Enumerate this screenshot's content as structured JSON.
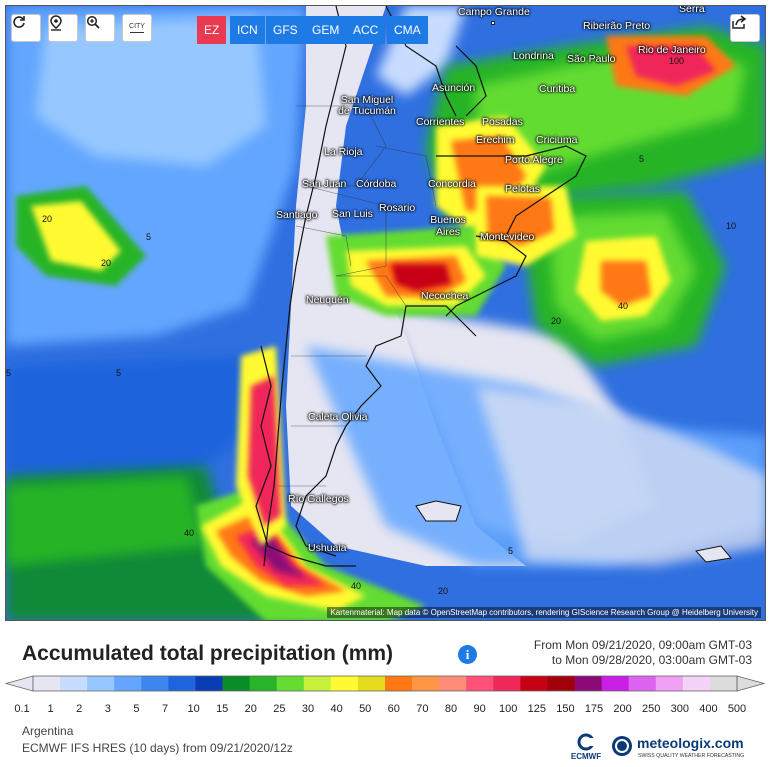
{
  "toolbar": {
    "reload_icon": "reload-icon",
    "location_icon": "location-pin-icon",
    "zoom_icon": "zoom-icon",
    "city_label": "CITY",
    "share_icon": "share-icon"
  },
  "models": [
    {
      "label": "EZ",
      "active": true
    },
    {
      "label": "ICN",
      "active": false
    },
    {
      "label": "GFS",
      "active": false
    },
    {
      "label": "GEM",
      "active": false
    },
    {
      "label": "ACC",
      "active": false
    },
    {
      "label": "CMA",
      "active": false
    }
  ],
  "cities": [
    "Campo Grande",
    "Ribeirão Preto",
    "Serra",
    "Rio de Janeiro",
    "Londrina",
    "São Paulo",
    "Asunción",
    "Curitiba",
    "San Miguel de Tucumán",
    "Corrientes",
    "Posadas",
    "Erechim",
    "Criciuma",
    "Porto Alegre",
    "La Rioja",
    "San Juan",
    "Córdoba",
    "Concordia",
    "Pelotas",
    "Santiago",
    "San Luis",
    "Rosario",
    "Buenos Aires",
    "Montevideo",
    "Necochea",
    "Neuquén",
    "Caleta Olivia",
    "Río Gallegos",
    "Ushuaia"
  ],
  "contour_labels": [
    "5",
    "10",
    "20",
    "40",
    "100"
  ],
  "attribution": "Kartenmaterial: Map data © OpenStreetMap contributors, rendering GIScience Research Group @ Heidelberg University",
  "title": "Accumulated total precipitation (mm)",
  "date_from": "From Mon 09/21/2020, 09:00am GMT-03",
  "date_to": "to Mon 09/28/2020, 03:00am GMT-03",
  "legend": {
    "ticks": [
      "0.1",
      "1",
      "2",
      "3",
      "5",
      "7",
      "10",
      "15",
      "20",
      "25",
      "30",
      "40",
      "50",
      "60",
      "70",
      "80",
      "90",
      "100",
      "125",
      "150",
      "175",
      "200",
      "250",
      "300",
      "400",
      "500"
    ],
    "colors": [
      "#e6e6f2",
      "#c8dcff",
      "#96c8ff",
      "#64a6ff",
      "#3c86f0",
      "#1e64dc",
      "#0a3cb4",
      "#0a8c28",
      "#28b428",
      "#64dc32",
      "#c8f03c",
      "#fffa32",
      "#e6dc1e",
      "#ff7814",
      "#ff9646",
      "#ff8c78",
      "#ff5078",
      "#f0285a",
      "#c80014",
      "#a0000a",
      "#8c0a78",
      "#c81ee6",
      "#dc64f0",
      "#f0a0f5",
      "#f5d2f8",
      "#dcdcdc"
    ]
  },
  "footer": {
    "region": "Argentina",
    "model_run": "ECMWF IFS HRES (10 days) from 09/21/2020/12z",
    "ecmwf_label": "ECMWF",
    "brand": "meteologix.com",
    "brand_tagline": "SWISS QUALITY WEATHER FORECASTING"
  }
}
